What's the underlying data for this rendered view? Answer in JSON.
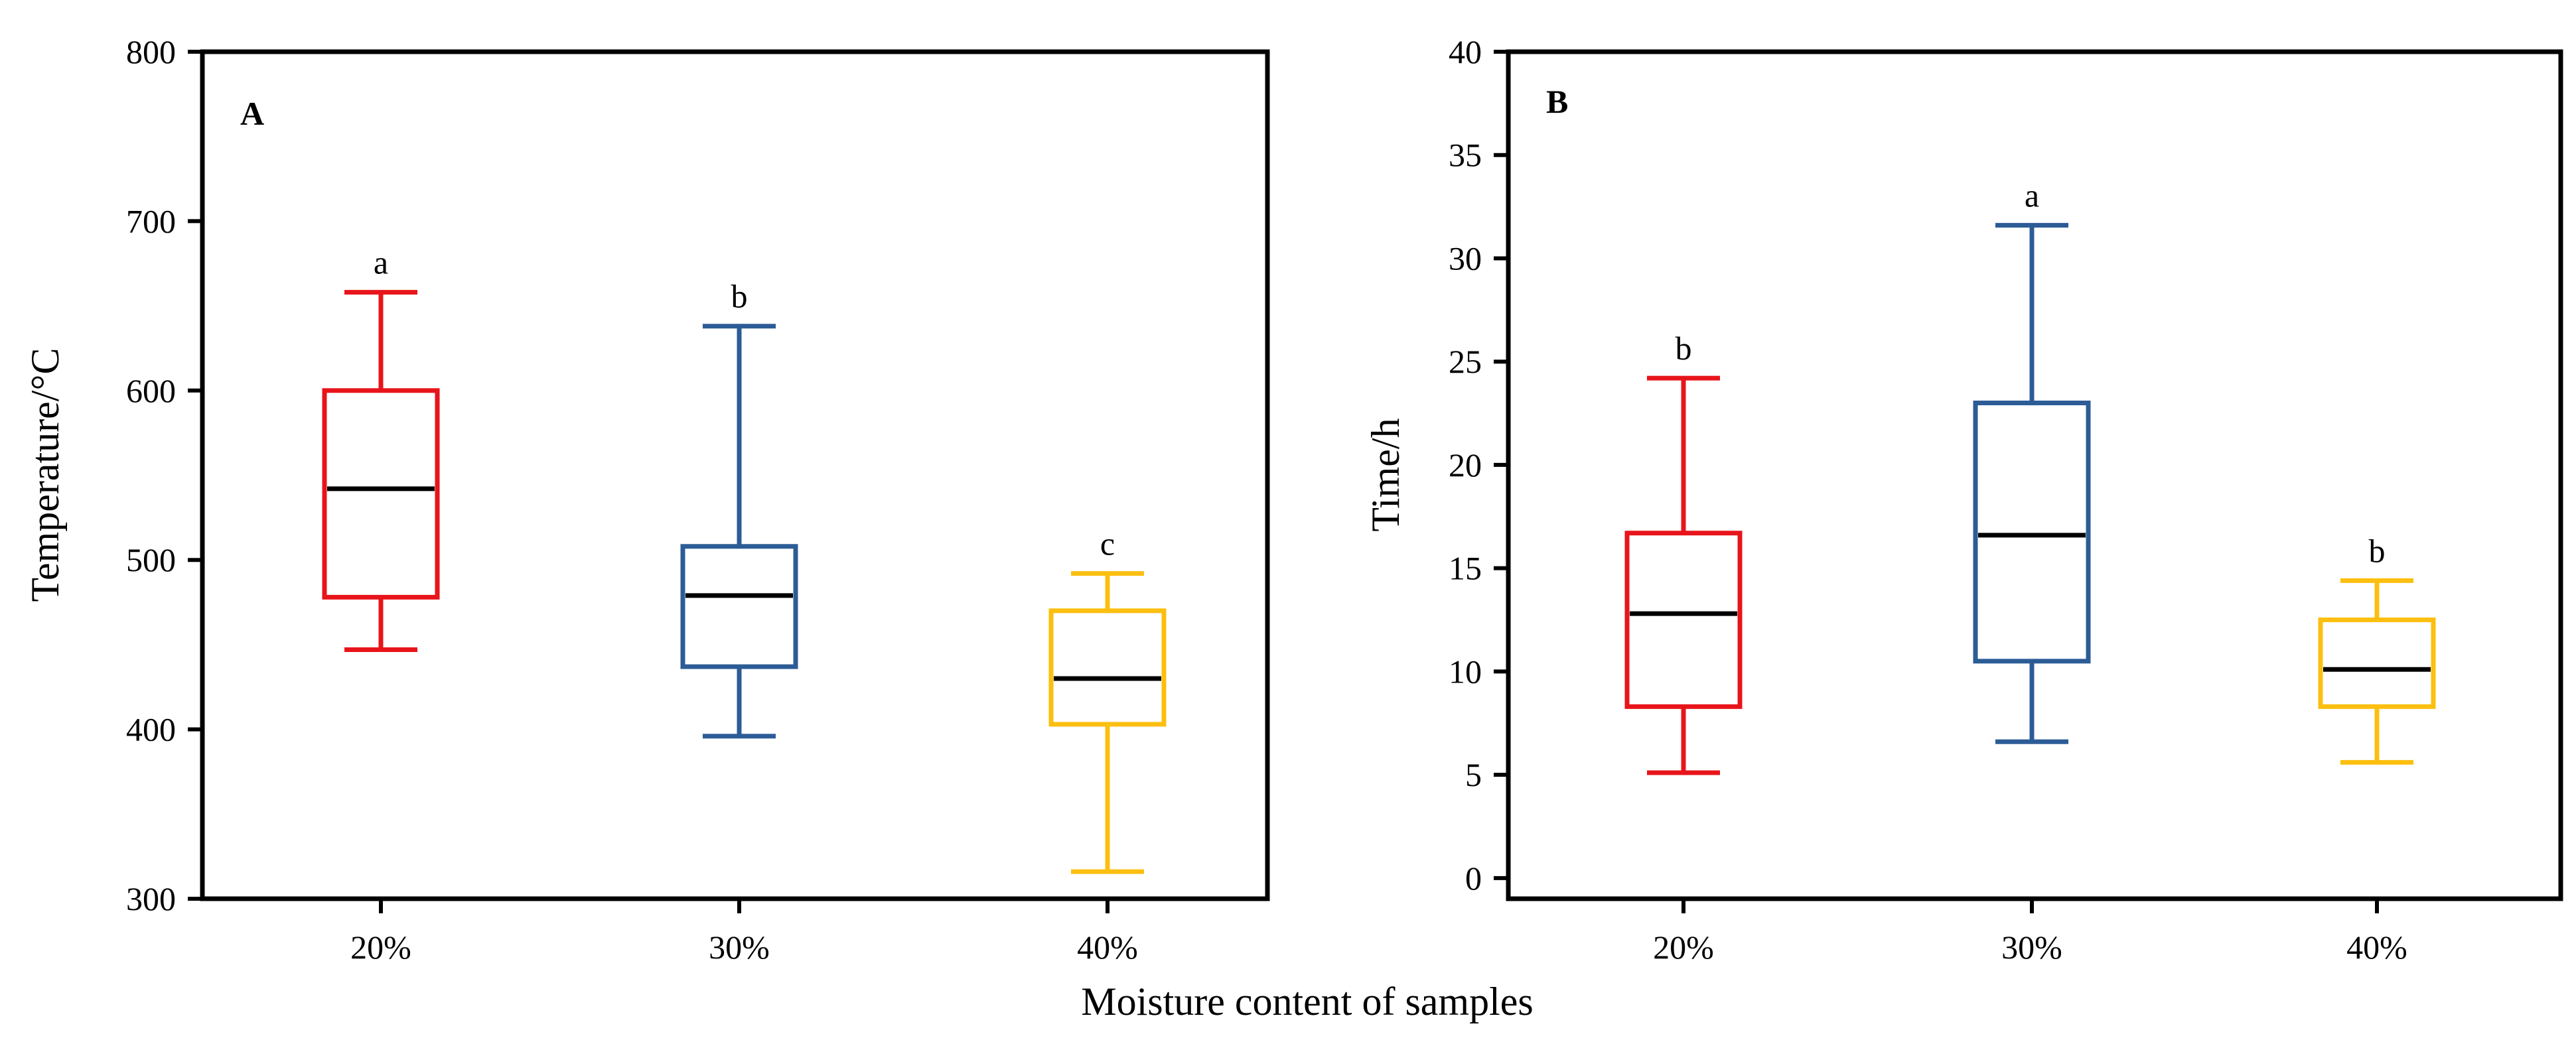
{
  "figure_title": "Moisture content of samples",
  "chart_data": [
    {
      "type": "box",
      "panel_label": "A",
      "title": "",
      "xlabel": "",
      "ylabel": "Temperature/°C",
      "ylim": [
        300,
        800
      ],
      "yticks": [
        300,
        400,
        500,
        600,
        700,
        800
      ],
      "ytick_labels": [
        "300",
        "400",
        "500",
        "600",
        "700",
        "800"
      ],
      "categories": [
        "20%",
        "30%",
        "40%"
      ],
      "boxes": [
        {
          "category": "20%",
          "whisker_low": 447,
          "q1": 478,
          "median": 542,
          "q3": 600,
          "whisker_high": 658,
          "letter": "a",
          "color": "#e8141b"
        },
        {
          "category": "30%",
          "whisker_low": 396,
          "q1": 437,
          "median": 479,
          "q3": 508,
          "whisker_high": 638,
          "letter": "b",
          "color": "#2c5c96"
        },
        {
          "category": "40%",
          "whisker_low": 316,
          "q1": 403,
          "median": 430,
          "q3": 470,
          "whisker_high": 492,
          "letter": "c",
          "color": "#fcbf10"
        }
      ]
    },
    {
      "type": "box",
      "panel_label": "B",
      "title": "",
      "xlabel": "",
      "ylabel": "Time/h",
      "ylim": [
        -1,
        40
      ],
      "yticks": [
        0,
        5,
        10,
        15,
        20,
        25,
        30,
        35,
        40
      ],
      "ytick_labels": [
        "0",
        "5",
        "10",
        "15",
        "20",
        "25",
        "30",
        "35",
        "40"
      ],
      "categories": [
        "20%",
        "30%",
        "40%"
      ],
      "boxes": [
        {
          "category": "20%",
          "whisker_low": 5.1,
          "q1": 8.3,
          "median": 12.8,
          "q3": 16.7,
          "whisker_high": 24.2,
          "letter": "b",
          "color": "#e8141b"
        },
        {
          "category": "30%",
          "whisker_low": 6.6,
          "q1": 10.5,
          "median": 16.6,
          "q3": 23.0,
          "whisker_high": 31.6,
          "letter": "a",
          "color": "#2c5c96"
        },
        {
          "category": "40%",
          "whisker_low": 5.6,
          "q1": 8.3,
          "median": 10.1,
          "q3": 12.5,
          "whisker_high": 14.4,
          "letter": "b",
          "color": "#fcbf10"
        }
      ]
    }
  ],
  "colors": {
    "axis": "#000000",
    "median": "#000000"
  }
}
